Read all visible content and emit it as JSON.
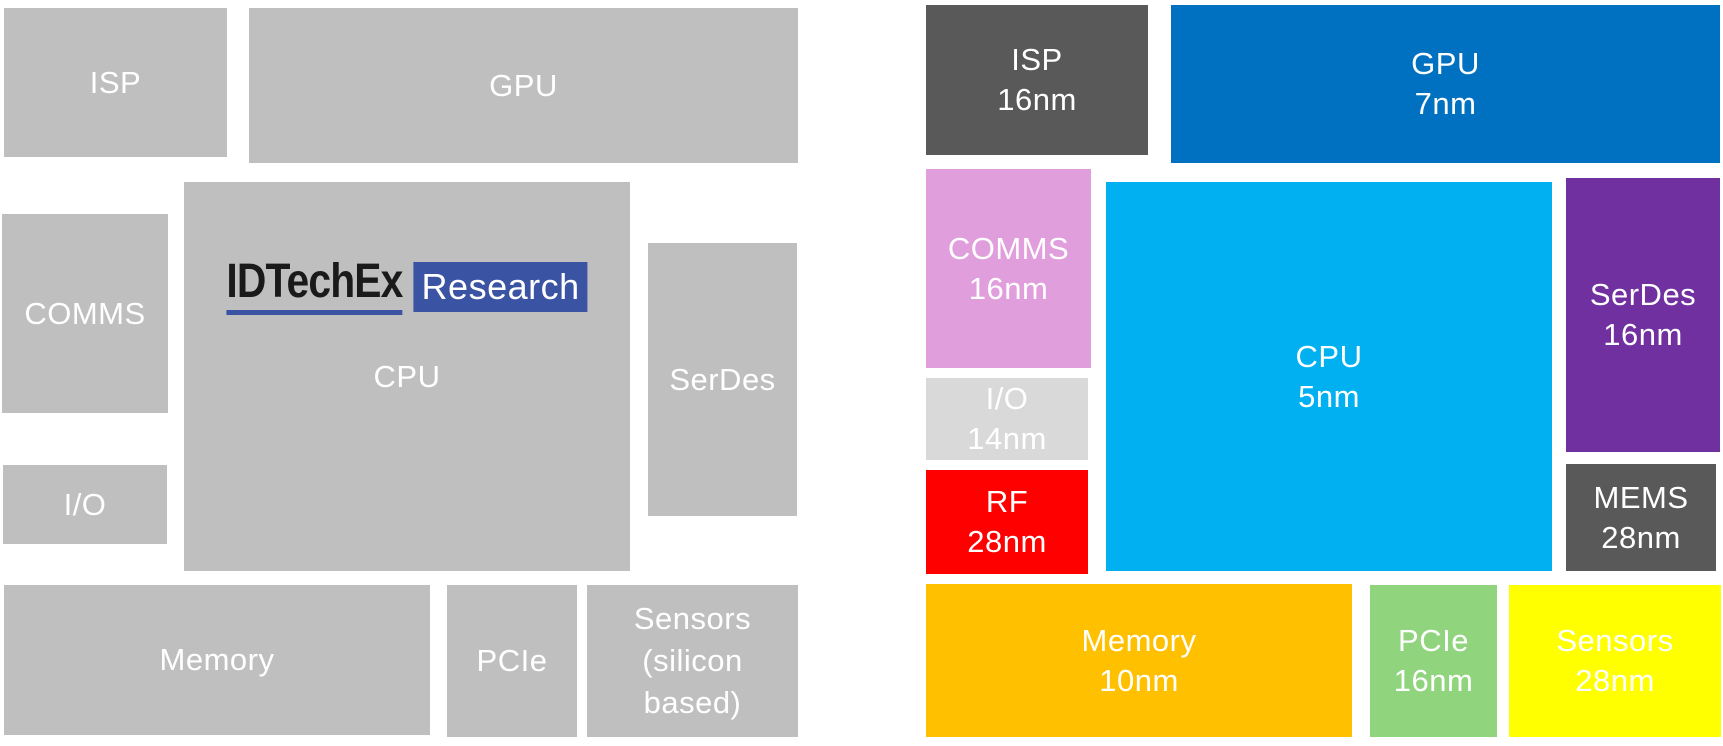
{
  "left_diagram": {
    "block_color": "#bfbfbf",
    "text_color": "#ffffff",
    "blocks": {
      "isp": {
        "label": "ISP"
      },
      "gpu": {
        "label": "GPU"
      },
      "comms": {
        "label": "COMMS"
      },
      "cpu": {
        "label": "CPU"
      },
      "serdes": {
        "label": "SerDes"
      },
      "io": {
        "label": "I/O"
      },
      "memory": {
        "label": "Memory"
      },
      "pcie": {
        "label": "PCIe"
      },
      "sensors": {
        "lines": [
          "Sensors",
          "(silicon",
          "based)"
        ]
      }
    },
    "logo": {
      "brand": "IDTechEx",
      "product": "Research",
      "brand_text_color": "#1a1a1a",
      "accent_color": "#3a53a3",
      "product_text_color": "#ffffff"
    }
  },
  "right_diagram": {
    "blocks": {
      "isp": {
        "label": "ISP",
        "node": "16nm",
        "color": "#595959",
        "text_color": "#ffffff"
      },
      "gpu": {
        "label": "GPU",
        "node": "7nm",
        "color": "#0070c0",
        "text_color": "#ffffff"
      },
      "comms": {
        "label": "COMMS",
        "node": "16nm",
        "color": "#e09edc",
        "text_color": "#ffffff"
      },
      "cpu": {
        "label": "CPU",
        "node": "5nm",
        "color": "#00b0f0",
        "text_color": "#ffffff"
      },
      "serdes": {
        "label": "SerDes",
        "node": "16nm",
        "color": "#7030a0",
        "text_color": "#ffffff"
      },
      "io": {
        "label": "I/O",
        "node": "14nm",
        "color": "#d9d9d9",
        "text_color": "#ffffff"
      },
      "rf": {
        "label": "RF",
        "node": "28nm",
        "color": "#ff0000",
        "text_color": "#ffffff"
      },
      "mems": {
        "label": "MEMS",
        "node": "28nm",
        "color": "#595959",
        "text_color": "#ffffff"
      },
      "memory": {
        "label": "Memory",
        "node": "10nm",
        "color": "#ffc000",
        "text_color": "#ffffff"
      },
      "pcie": {
        "label": "PCIe",
        "node": "16nm",
        "color": "#90d57e",
        "text_color": "#ffffff"
      },
      "sensors": {
        "label": "Sensors",
        "node": "28nm",
        "color": "#ffff00",
        "text_color": "#ffffff"
      }
    }
  }
}
